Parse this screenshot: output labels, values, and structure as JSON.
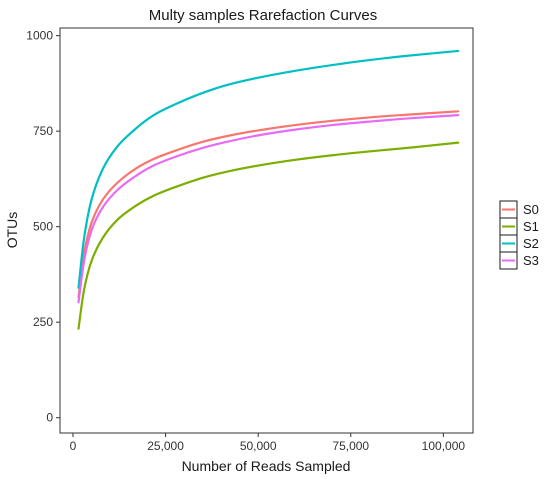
{
  "chart_data": {
    "type": "line",
    "title": "Multy samples Rarefaction Curves",
    "xlabel": "Number of Reads Sampled",
    "ylabel": "OTUs",
    "xlim": [
      -3500,
      108000
    ],
    "ylim": [
      -40,
      1020
    ],
    "x_ticks": [
      0,
      25000,
      50000,
      75000,
      100000
    ],
    "x_tick_labels": [
      "0",
      "25,000",
      "50,000",
      "75,000",
      "100,000"
    ],
    "y_ticks": [
      0,
      250,
      500,
      750,
      1000
    ],
    "y_tick_labels": [
      "0",
      "250",
      "500",
      "750",
      "1000"
    ],
    "grid": false,
    "legend_position": "right",
    "series": [
      {
        "name": "S0",
        "color": "#F8766D",
        "x": [
          1500,
          3000,
          5000,
          8000,
          12000,
          17000,
          22000,
          28000,
          35000,
          42000,
          50000,
          60000,
          70000,
          80000,
          90000,
          104000
        ],
        "y": [
          315,
          430,
          510,
          570,
          615,
          652,
          678,
          700,
          722,
          738,
          752,
          766,
          777,
          786,
          793,
          802
        ]
      },
      {
        "name": "S1",
        "color": "#7CAE00",
        "x": [
          1500,
          3000,
          5000,
          8000,
          12000,
          17000,
          22000,
          28000,
          35000,
          42000,
          50000,
          60000,
          70000,
          80000,
          90000,
          104000
        ],
        "y": [
          233,
          335,
          410,
          470,
          518,
          555,
          582,
          605,
          628,
          645,
          660,
          675,
          687,
          697,
          706,
          720
        ]
      },
      {
        "name": "S2",
        "color": "#00BFC4",
        "x": [
          1500,
          3000,
          5000,
          8000,
          12000,
          17000,
          22000,
          28000,
          35000,
          42000,
          50000,
          60000,
          70000,
          80000,
          90000,
          104000
        ],
        "y": [
          340,
          470,
          570,
          650,
          710,
          757,
          793,
          822,
          850,
          872,
          890,
          908,
          923,
          936,
          947,
          960
        ]
      },
      {
        "name": "S3",
        "color": "#E76BF3",
        "x": [
          1500,
          3000,
          5000,
          8000,
          12000,
          17000,
          22000,
          28000,
          35000,
          42000,
          50000,
          60000,
          70000,
          80000,
          90000,
          104000
        ],
        "y": [
          302,
          410,
          490,
          550,
          596,
          633,
          661,
          684,
          706,
          723,
          739,
          754,
          766,
          775,
          783,
          792
        ]
      }
    ]
  }
}
